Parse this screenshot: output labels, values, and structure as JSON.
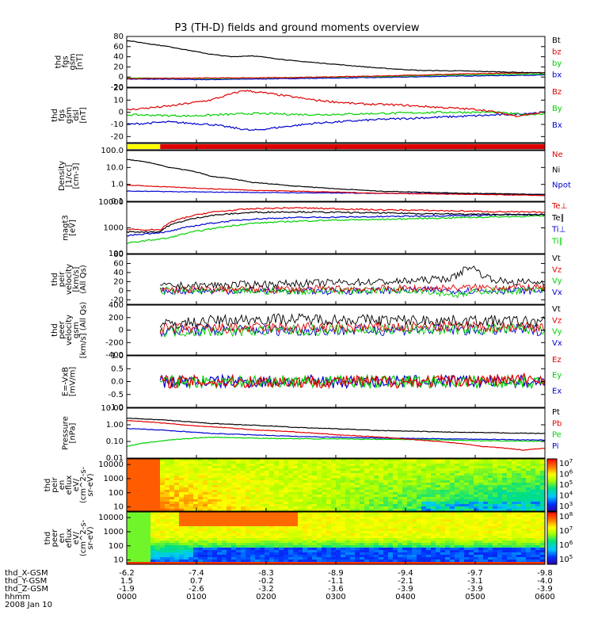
{
  "title": "P3 (TH-D) fields and ground moments overview",
  "colors": {
    "black": "#000000",
    "red": "#e00000",
    "green": "#00d000",
    "blue": "#0000d0",
    "yellow": "#ffff00"
  },
  "chart_data": [
    {
      "type": "line",
      "ylabel": [
        "thd",
        "fgs",
        "gsm",
        "[nT]"
      ],
      "ylim": [
        -20,
        80
      ],
      "yticks": [
        "80",
        "60",
        "40",
        "20",
        "0",
        "-20"
      ],
      "legend": [
        {
          "name": "Bt",
          "color": "black"
        },
        {
          "name": "bz",
          "color": "red"
        },
        {
          "name": "by",
          "color": "green"
        },
        {
          "name": "bx",
          "color": "blue"
        }
      ],
      "series": [
        {
          "name": "Bt",
          "color": "black",
          "x": [
            0,
            0.1,
            0.2,
            0.25,
            0.3,
            0.4,
            0.5,
            0.6,
            0.7,
            0.8,
            0.9,
            1.0
          ],
          "y": [
            72,
            60,
            45,
            40,
            42,
            32,
            25,
            18,
            13,
            12,
            10,
            8
          ]
        },
        {
          "name": "bz",
          "color": "red",
          "x": [
            0,
            0.2,
            0.4,
            0.6,
            0.8,
            1.0
          ],
          "y": [
            -3,
            -2,
            -1,
            2,
            6,
            9
          ]
        },
        {
          "name": "by",
          "color": "green",
          "x": [
            0,
            0.2,
            0.4,
            0.6,
            0.8,
            1.0
          ],
          "y": [
            -2,
            -3,
            -1,
            1,
            4,
            6
          ]
        },
        {
          "name": "bx",
          "color": "blue",
          "x": [
            0,
            0.2,
            0.4,
            0.6,
            0.8,
            1.0
          ],
          "y": [
            -4,
            -5,
            -3,
            -1,
            2,
            4
          ]
        }
      ]
    },
    {
      "type": "line",
      "ylabel": [
        "thd",
        "fgs",
        "gsm",
        "dsl",
        "[nT]"
      ],
      "ylim": [
        -25,
        20
      ],
      "yticks": [
        "20",
        "10",
        "0",
        "-10",
        "-20"
      ],
      "legend": [
        {
          "name": "Bz",
          "color": "red"
        },
        {
          "name": "By",
          "color": "green"
        },
        {
          "name": "Bx",
          "color": "blue"
        }
      ],
      "series": [
        {
          "name": "Bz",
          "color": "red",
          "x": [
            0,
            0.1,
            0.2,
            0.28,
            0.35,
            0.45,
            0.55,
            0.65,
            0.75,
            0.85,
            0.93,
            1.0
          ],
          "y": [
            2,
            5,
            10,
            18,
            15,
            10,
            7,
            6,
            4,
            2,
            -3,
            0
          ]
        },
        {
          "name": "By",
          "color": "green",
          "x": [
            0,
            0.15,
            0.3,
            0.45,
            0.6,
            0.75,
            0.88,
            0.95,
            1.0
          ],
          "y": [
            -2,
            -3,
            -1,
            -2,
            -1,
            0,
            0,
            -2,
            -1
          ]
        },
        {
          "name": "Bx",
          "color": "blue",
          "x": [
            0,
            0.1,
            0.2,
            0.3,
            0.45,
            0.6,
            0.75,
            0.9,
            1.0
          ],
          "y": [
            -10,
            -8,
            -10,
            -15,
            -9,
            -6,
            -4,
            -2,
            0
          ]
        }
      ]
    },
    {
      "type": "bar",
      "ylabel": [],
      "segments": [
        {
          "x0": 0,
          "x1": 0.08,
          "color": "yellow"
        },
        {
          "x0": 0.08,
          "x1": 1,
          "color": "red"
        }
      ]
    },
    {
      "type": "line",
      "ylabel": [
        "Density",
        "[1/cc]",
        "[cm-3]"
      ],
      "scale": "log",
      "ylim": [
        0.1,
        100
      ],
      "yticks": [
        "100.0",
        "10.0",
        "1.0",
        "0.1"
      ],
      "legend": [
        {
          "name": "Ne",
          "color": "red"
        },
        {
          "name": "Ni",
          "color": "black"
        },
        {
          "name": "Npot",
          "color": "blue"
        }
      ],
      "series": [
        {
          "name": "Ni",
          "color": "black",
          "x": [
            0,
            0.1,
            0.2,
            0.3,
            0.4,
            0.5,
            0.6,
            0.7,
            0.8,
            0.9,
            1.0
          ],
          "y": [
            30,
            10,
            3,
            1.3,
            0.8,
            0.55,
            0.4,
            0.35,
            0.3,
            0.28,
            0.25
          ]
        },
        {
          "name": "Ne",
          "color": "red",
          "x": [
            0,
            0.1,
            0.2,
            0.3,
            0.4,
            0.5,
            0.6,
            0.7,
            0.8,
            0.9,
            1.0
          ],
          "y": [
            0.9,
            0.7,
            0.55,
            0.45,
            0.4,
            0.35,
            0.3,
            0.28,
            0.26,
            0.24,
            0.22
          ]
        },
        {
          "name": "Npot",
          "color": "blue",
          "x": [
            0,
            0.2,
            0.4,
            0.6,
            0.8,
            1.0
          ],
          "y": [
            0.4,
            0.35,
            0.32,
            0.3,
            0.28,
            0.25
          ]
        }
      ]
    },
    {
      "type": "line",
      "ylabel": [
        "magt3",
        "[eV]"
      ],
      "scale": "log",
      "ylim": [
        100,
        10000
      ],
      "yticks": [
        "10000",
        "1000",
        "100"
      ],
      "legend": [
        {
          "name": "Te⊥",
          "color": "red"
        },
        {
          "name": "Te∥",
          "color": "black"
        },
        {
          "name": "Ti⊥",
          "color": "blue"
        },
        {
          "name": "Ti∥",
          "color": "green"
        }
      ],
      "series": [
        {
          "name": "Te⊥",
          "color": "red",
          "x": [
            0,
            0.08,
            0.1,
            0.2,
            0.3,
            0.4,
            0.5,
            0.6,
            0.7,
            0.8,
            0.9,
            1.0
          ],
          "y": [
            900,
            800,
            1500,
            4000,
            5500,
            6000,
            5500,
            5000,
            4800,
            4500,
            4200,
            4000
          ]
        },
        {
          "name": "Te∥",
          "color": "black",
          "x": [
            0,
            0.08,
            0.1,
            0.2,
            0.3,
            0.4,
            0.5,
            0.6,
            0.7,
            0.8,
            0.9,
            1.0
          ],
          "y": [
            700,
            700,
            1200,
            3000,
            4000,
            4200,
            4000,
            3800,
            3600,
            3400,
            3300,
            3200
          ]
        },
        {
          "name": "Ti⊥",
          "color": "blue",
          "x": [
            0,
            0.1,
            0.2,
            0.3,
            0.4,
            0.5,
            0.6,
            0.7,
            0.8,
            0.9,
            1.0
          ],
          "y": [
            500,
            700,
            1500,
            2200,
            2500,
            2600,
            2700,
            2900,
            3000,
            3200,
            3300
          ]
        },
        {
          "name": "Ti∥",
          "color": "green",
          "x": [
            0,
            0.1,
            0.2,
            0.3,
            0.4,
            0.5,
            0.6,
            0.7,
            0.8,
            0.9,
            1.0
          ],
          "y": [
            250,
            400,
            900,
            1500,
            1800,
            2000,
            2100,
            2300,
            2500,
            2700,
            2900
          ]
        }
      ]
    },
    {
      "type": "line",
      "ylabel": [
        "thd",
        "peir",
        "velocity",
        "[km/s]",
        "(All Qs)"
      ],
      "ylim": [
        -30,
        80
      ],
      "yticks": [
        "80",
        "60",
        "40",
        "20",
        "0",
        "-20"
      ],
      "legend": [
        {
          "name": "Vt",
          "color": "black"
        },
        {
          "name": "Vz",
          "color": "red"
        },
        {
          "name": "Vy",
          "color": "green"
        },
        {
          "name": "Vx",
          "color": "blue"
        }
      ],
      "series": [
        {
          "name": "Vt",
          "color": "black",
          "x": [
            0.08,
            0.2,
            0.35,
            0.5,
            0.65,
            0.78,
            0.82,
            0.86,
            0.9,
            1.0
          ],
          "y": [
            10,
            12,
            15,
            18,
            20,
            28,
            55,
            30,
            20,
            18
          ]
        },
        {
          "name": "Vz",
          "color": "red",
          "x": [
            0.08,
            0.3,
            0.5,
            0.7,
            0.9,
            1.0
          ],
          "y": [
            2,
            3,
            4,
            5,
            8,
            6
          ]
        },
        {
          "name": "Vy",
          "color": "green",
          "x": [
            0.08,
            0.3,
            0.5,
            0.7,
            0.8,
            0.85,
            1.0
          ],
          "y": [
            0,
            -1,
            0,
            2,
            -10,
            0,
            1
          ]
        },
        {
          "name": "Vx",
          "color": "blue",
          "x": [
            0.08,
            0.3,
            0.5,
            0.7,
            0.9,
            1.0
          ],
          "y": [
            0,
            0,
            -1,
            1,
            0,
            0
          ]
        }
      ]
    },
    {
      "type": "line",
      "ylabel": [
        "thd",
        "peer",
        "velocity",
        "gsm",
        "[km/s] (All Qs)"
      ],
      "ylim": [
        -400,
        400
      ],
      "yticks": [
        "400",
        "200",
        "0",
        "-200",
        "-400"
      ],
      "legend": [
        {
          "name": "Vt",
          "color": "black"
        },
        {
          "name": "Vz",
          "color": "red"
        },
        {
          "name": "Vy",
          "color": "green"
        },
        {
          "name": "Vx",
          "color": "blue"
        }
      ],
      "series": [
        {
          "name": "Vt",
          "color": "black",
          "x": [
            0.08,
            0.2,
            0.35,
            0.5,
            0.65,
            0.8,
            1.0
          ],
          "y": [
            80,
            150,
            180,
            170,
            160,
            150,
            140
          ]
        },
        {
          "name": "Vz",
          "color": "red",
          "x": [
            0.08,
            0.3,
            0.5,
            0.7,
            1.0
          ],
          "y": [
            20,
            30,
            40,
            50,
            60
          ]
        },
        {
          "name": "Vy",
          "color": "green",
          "x": [
            0.08,
            0.3,
            0.5,
            0.7,
            1.0
          ],
          "y": [
            -20,
            -10,
            0,
            10,
            20
          ]
        },
        {
          "name": "Vx",
          "color": "blue",
          "x": [
            0.08,
            0.3,
            0.5,
            0.7,
            1.0
          ],
          "y": [
            -10,
            0,
            -5,
            5,
            0
          ]
        }
      ]
    },
    {
      "type": "line",
      "ylabel": [
        "E=-VxB",
        "[mV/m]"
      ],
      "ylim": [
        -1,
        1
      ],
      "yticks": [
        "1.0",
        "0.5",
        "0.0",
        "-0.5",
        "-1.0"
      ],
      "legend": [
        {
          "name": "Ez",
          "color": "red"
        },
        {
          "name": "Ey",
          "color": "green"
        },
        {
          "name": "Ex",
          "color": "blue"
        }
      ],
      "series": [
        {
          "name": "Ez",
          "color": "red",
          "x": [
            0.08,
            0.3,
            0.5,
            0.7,
            0.85,
            1.0
          ],
          "y": [
            0,
            0,
            0,
            0,
            0.05,
            0.1
          ]
        },
        {
          "name": "Ey",
          "color": "green",
          "x": [
            0.08,
            0.3,
            0.5,
            0.7,
            1.0
          ],
          "y": [
            0,
            0,
            0,
            0,
            0
          ]
        },
        {
          "name": "Ex",
          "color": "blue",
          "x": [
            0.08,
            0.3,
            0.5,
            0.7,
            1.0
          ],
          "y": [
            0,
            0,
            0,
            0,
            0
          ]
        }
      ]
    },
    {
      "type": "line",
      "ylabel": [
        "Pressure",
        "[nPa]"
      ],
      "scale": "log",
      "ylim": [
        0.01,
        10
      ],
      "yticks": [
        "10.00",
        "1.00",
        "0.10",
        "0.01"
      ],
      "legend": [
        {
          "name": "Pt",
          "color": "black"
        },
        {
          "name": "Pb",
          "color": "red"
        },
        {
          "name": "Pe",
          "color": "green"
        },
        {
          "name": "Pi",
          "color": "blue"
        }
      ],
      "series": [
        {
          "name": "Pt",
          "color": "black",
          "x": [
            0,
            0.2,
            0.4,
            0.6,
            0.8,
            1.0
          ],
          "y": [
            2.5,
            1.2,
            0.7,
            0.45,
            0.35,
            0.3
          ]
        },
        {
          "name": "Pb",
          "color": "red",
          "x": [
            0,
            0.15,
            0.3,
            0.5,
            0.7,
            0.85,
            0.95,
            1.0
          ],
          "y": [
            1.8,
            0.9,
            0.5,
            0.25,
            0.12,
            0.05,
            0.03,
            0.04
          ]
        },
        {
          "name": "Pe",
          "color": "green",
          "x": [
            0,
            0.1,
            0.2,
            0.35,
            0.5,
            0.7,
            0.85,
            1.0
          ],
          "y": [
            0.05,
            0.12,
            0.18,
            0.15,
            0.14,
            0.13,
            0.11,
            0.1
          ]
        },
        {
          "name": "Pi",
          "color": "blue",
          "x": [
            0,
            0.2,
            0.4,
            0.6,
            0.8,
            1.0
          ],
          "y": [
            0.6,
            0.3,
            0.2,
            0.16,
            0.14,
            0.12
          ]
        }
      ]
    },
    {
      "type": "heatmap",
      "ylabel": [
        "thd",
        "peir",
        "en",
        "eflux",
        "eV/",
        "(cm^2-s-",
        "sr-eV)"
      ],
      "scale": "log",
      "ylim": [
        5,
        25000
      ],
      "yticks": [
        "10000",
        "1000",
        "100",
        "10"
      ],
      "colorbar_ticks": [
        "10^7",
        "10^6",
        "10^5",
        "10^4",
        "10^3"
      ]
    },
    {
      "type": "heatmap",
      "ylabel": [
        "thd",
        "peer",
        "en",
        "eflux",
        "eV/",
        "(cm^2-s-",
        "sr-eV)"
      ],
      "scale": "log",
      "ylim": [
        5,
        25000
      ],
      "yticks": [
        "10000",
        "1000",
        "100",
        "10"
      ],
      "colorbar_ticks": [
        "10^8",
        "10^7",
        "10^6",
        "10^5"
      ]
    }
  ],
  "footer": {
    "labels": [
      "thd_X-GSM",
      "thd_Y-GSM",
      "thd_Z-GSM",
      "hhmm",
      "2008 Jan 10"
    ],
    "columns": [
      [
        "-6.2",
        "1.5",
        "-1.9",
        "0000"
      ],
      [
        "-7.4",
        "0.7",
        "-2.6",
        "0100"
      ],
      [
        "-8.3",
        "-0.2",
        "-3.2",
        "0200"
      ],
      [
        "-8.9",
        "-1.1",
        "-3.6",
        "0300"
      ],
      [
        "-9.4",
        "-2.1",
        "-3.9",
        "0400"
      ],
      [
        "-9.7",
        "-3.1",
        "-3.9",
        "0500"
      ],
      [
        "-9.8",
        "-4.0",
        "-3.9",
        "0600"
      ]
    ]
  }
}
